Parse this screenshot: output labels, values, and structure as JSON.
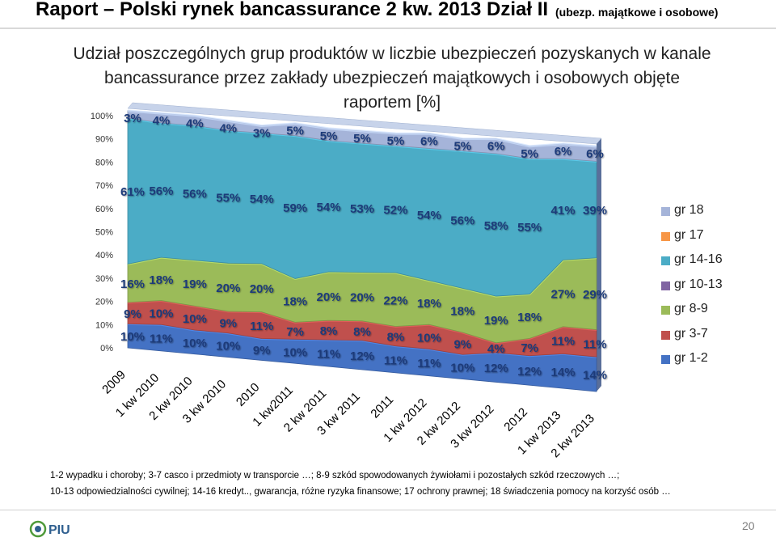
{
  "slide": {
    "title_main": "Raport – Polski rynek bancassurance 2 kw. 2013 Dział II",
    "title_sub": "(ubezp. majątkowe i osobowe)",
    "footnote_line1": "1-2 wypadku i choroby; 3-7 casco i przedmioty w transporcie …; 8-9 szkód spowodowanych żywiołami i pozostałych szkód rzeczowych …;",
    "footnote_line2": "10-13 odpowiedzialności cywilnej; 14-16 kredyt.., gwarancja, różne ryzyka finansowe; 17 ochrony prawnej; 18 świadczenia pomocy na korzyść osób …",
    "page_number": "20",
    "logo_text": "PIU"
  },
  "chart_data": {
    "type": "area",
    "stacked": true,
    "percent": true,
    "style": "3d",
    "title_lines": [
      "Udział poszczególnych grup produktów w liczbie ubezpieczeń pozyskanych w kanale",
      "bancassurance przez zakłady ubezpieczeń majątkowych i osobowych objęte",
      "raportem [%]"
    ],
    "categories": [
      "2009",
      "1 kw 2010",
      "2 kw 2010",
      "3 kw 2010",
      "2010",
      "1 kw2011",
      "2 kw 2011",
      "3 kw 2011",
      "2011",
      "1 kw 2012",
      "2 kw 2012",
      "3 kw 2012",
      "2012",
      "1 kw 2013",
      "2 kw 2013"
    ],
    "y_ticks": [
      "0%",
      "10%",
      "20%",
      "30%",
      "40%",
      "50%",
      "60%",
      "70%",
      "80%",
      "90%",
      "100%"
    ],
    "ylim": [
      0,
      100
    ],
    "legend_position": "right",
    "series": [
      {
        "name": "gr 1-2",
        "color": "#4472c4",
        "values": [
          10,
          11,
          10,
          10,
          9,
          10,
          11,
          12,
          11,
          11,
          10,
          12,
          12,
          14,
          14
        ]
      },
      {
        "name": "gr 3-7",
        "color": "#c0504d",
        "values": [
          9,
          10,
          10,
          9,
          11,
          7,
          8,
          8,
          8,
          10,
          9,
          4,
          7,
          11,
          11
        ]
      },
      {
        "name": "gr 8-9",
        "color": "#9bbb59",
        "values": [
          16,
          18,
          19,
          20,
          20,
          18,
          20,
          20,
          22,
          18,
          18,
          19,
          18,
          27,
          29
        ]
      },
      {
        "name": "gr 10-13",
        "color": "#8064a2",
        "values": [
          0,
          0,
          0,
          0,
          0,
          0,
          0,
          0,
          0,
          0,
          0,
          0,
          0,
          0,
          0
        ]
      },
      {
        "name": "gr 14-16",
        "color": "#4bacc6",
        "values": [
          61,
          56,
          56,
          55,
          54,
          59,
          54,
          53,
          52,
          54,
          56,
          58,
          55,
          41,
          39
        ]
      },
      {
        "name": "gr 17",
        "color": "#f79646",
        "values": [
          0,
          0,
          0,
          0,
          0,
          0,
          0,
          0,
          0,
          0,
          0,
          0,
          0,
          0,
          0
        ]
      },
      {
        "name": "gr 18",
        "color": "#a5b4d9",
        "values": [
          3,
          4,
          4,
          4,
          3,
          5,
          5,
          5,
          5,
          6,
          5,
          6,
          5,
          6,
          6
        ]
      }
    ],
    "legend_order": [
      "gr 18",
      "gr 17",
      "gr 14-16",
      "gr 10-13",
      "gr 8-9",
      "gr 3-7",
      "gr 1-2"
    ],
    "labelled_series": [
      "gr 1-2",
      "gr 3-7",
      "gr 8-9",
      "gr 14-16",
      "gr 18"
    ]
  }
}
